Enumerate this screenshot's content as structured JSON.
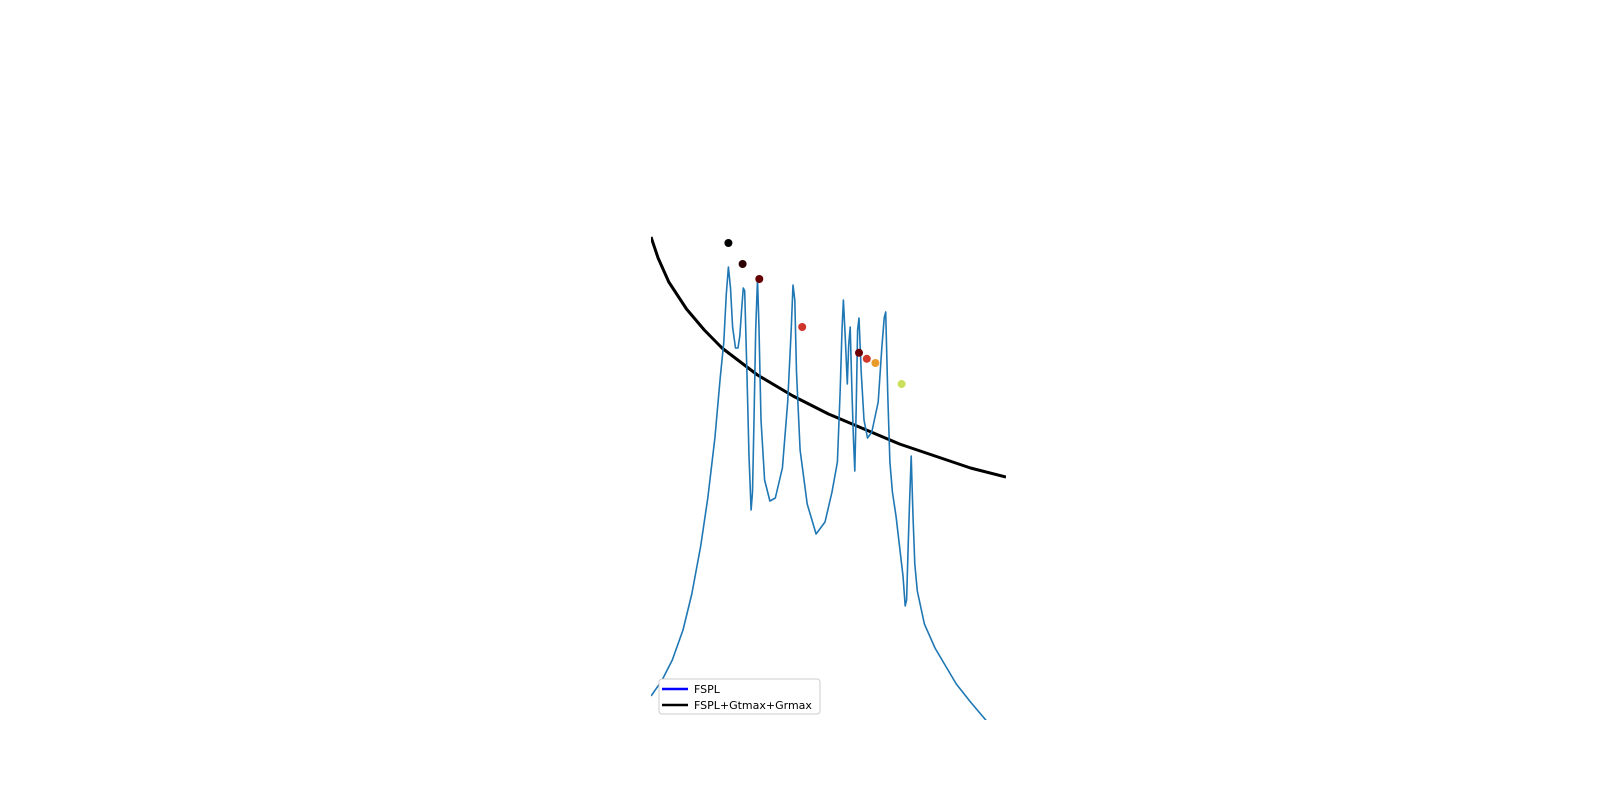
{
  "chart_data": {
    "type": "line",
    "title": "",
    "xlabel": "",
    "ylabel": "",
    "grid": false,
    "legend_placement": "lower-left",
    "legend": [
      {
        "label": "FSPL",
        "color": "#0000ff"
      },
      {
        "label": "FSPL+Gtmax+Grmax",
        "color": "#000000"
      }
    ],
    "series": [
      {
        "key": "fspl_envelope",
        "color": "#000000",
        "points": [
          [
            0.0,
            19.5
          ],
          [
            0.02,
            23.0
          ],
          [
            0.05,
            27.0
          ],
          [
            0.1,
            31.5
          ],
          [
            0.15,
            35.0
          ],
          [
            0.2,
            38.0
          ],
          [
            0.3,
            42.5
          ],
          [
            0.4,
            46.0
          ],
          [
            0.5,
            49.0
          ],
          [
            0.6,
            51.5
          ],
          [
            0.7,
            54.0
          ],
          [
            0.8,
            56.0
          ],
          [
            0.9,
            58.0
          ],
          [
            1.0,
            59.5
          ]
        ]
      },
      {
        "key": "measured",
        "color": "#1f77b4",
        "points": [
          [
            0.0,
            96.0
          ],
          [
            0.03,
            93.5
          ],
          [
            0.06,
            90.0
          ],
          [
            0.09,
            85.0
          ],
          [
            0.115,
            79.0
          ],
          [
            0.14,
            71.0
          ],
          [
            0.16,
            63.0
          ],
          [
            0.18,
            53.0
          ],
          [
            0.195,
            43.0
          ],
          [
            0.205,
            37.0
          ],
          [
            0.212,
            29.0
          ],
          [
            0.218,
            24.5
          ],
          [
            0.224,
            28.0
          ],
          [
            0.23,
            34.5
          ],
          [
            0.238,
            38.0
          ],
          [
            0.245,
            38.0
          ],
          [
            0.25,
            36.0
          ],
          [
            0.256,
            31.0
          ],
          [
            0.26,
            28.0
          ],
          [
            0.264,
            28.5
          ],
          [
            0.27,
            42.0
          ],
          [
            0.276,
            56.0
          ],
          [
            0.282,
            65.0
          ],
          [
            0.286,
            62.0
          ],
          [
            0.29,
            50.0
          ],
          [
            0.295,
            35.0
          ],
          [
            0.3,
            26.5
          ],
          [
            0.304,
            34.0
          ],
          [
            0.31,
            50.0
          ],
          [
            0.32,
            60.0
          ],
          [
            0.335,
            63.5
          ],
          [
            0.35,
            63.0
          ],
          [
            0.37,
            58.0
          ],
          [
            0.385,
            47.0
          ],
          [
            0.395,
            35.0
          ],
          [
            0.4,
            27.5
          ],
          [
            0.405,
            30.0
          ],
          [
            0.41,
            42.0
          ],
          [
            0.42,
            55.0
          ],
          [
            0.44,
            64.0
          ],
          [
            0.465,
            69.0
          ],
          [
            0.49,
            67.0
          ],
          [
            0.51,
            62.0
          ],
          [
            0.525,
            57.0
          ],
          [
            0.533,
            45.0
          ],
          [
            0.538,
            35.0
          ],
          [
            0.542,
            30.0
          ],
          [
            0.547,
            36.0
          ],
          [
            0.553,
            44.0
          ],
          [
            0.557,
            37.5
          ],
          [
            0.561,
            34.5
          ],
          [
            0.566,
            45.0
          ],
          [
            0.57,
            53.0
          ],
          [
            0.574,
            58.5
          ],
          [
            0.578,
            48.0
          ],
          [
            0.582,
            35.0
          ],
          [
            0.586,
            33.0
          ],
          [
            0.592,
            42.0
          ],
          [
            0.6,
            50.0
          ],
          [
            0.61,
            53.0
          ],
          [
            0.622,
            52.0
          ],
          [
            0.64,
            47.0
          ],
          [
            0.65,
            38.0
          ],
          [
            0.657,
            33.0
          ],
          [
            0.661,
            32.0
          ],
          [
            0.667,
            46.0
          ],
          [
            0.673,
            57.0
          ],
          [
            0.68,
            62.0
          ],
          [
            0.69,
            66.0
          ],
          [
            0.7,
            71.0
          ],
          [
            0.71,
            76.0
          ],
          [
            0.716,
            81.0
          ],
          [
            0.72,
            80.0
          ],
          [
            0.724,
            72.0
          ],
          [
            0.728,
            64.5
          ],
          [
            0.733,
            56.0
          ],
          [
            0.738,
            66.0
          ],
          [
            0.743,
            74.0
          ],
          [
            0.75,
            78.5
          ],
          [
            0.77,
            84.0
          ],
          [
            0.8,
            88.0
          ],
          [
            0.83,
            91.0
          ],
          [
            0.86,
            94.0
          ],
          [
            0.9,
            97.0
          ],
          [
            0.95,
            100.5
          ]
        ]
      }
    ],
    "markers": [
      {
        "x": 0.218,
        "y": 20.5,
        "color": "#000000"
      },
      {
        "x": 0.258,
        "y": 24.0,
        "color": "#2a0000"
      },
      {
        "x": 0.305,
        "y": 26.5,
        "color": "#650000"
      },
      {
        "x": 0.426,
        "y": 34.5,
        "color": "#d0332a"
      },
      {
        "x": 0.586,
        "y": 38.8,
        "color": "#6e0000"
      },
      {
        "x": 0.608,
        "y": 39.8,
        "color": "#d0392a"
      },
      {
        "x": 0.632,
        "y": 40.5,
        "color": "#e89a2a"
      },
      {
        "x": 0.706,
        "y": 44.0,
        "color": "#c9e05a"
      }
    ],
    "xlim": [
      0,
      1
    ],
    "ylim": [
      0,
      100
    ]
  }
}
